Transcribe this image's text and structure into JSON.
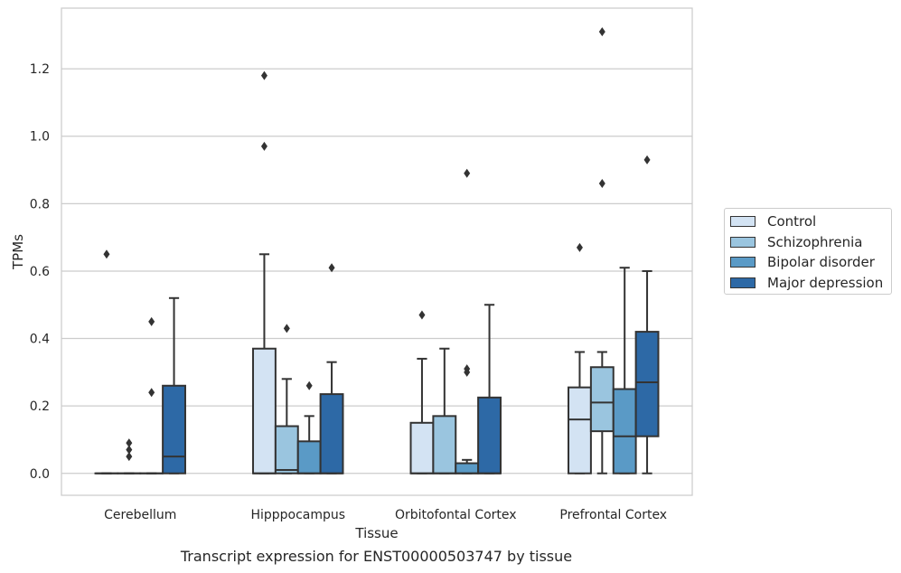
{
  "chart_data": {
    "type": "box",
    "xlabel": "Tissue",
    "ylabel": "TPMs",
    "caption": "Transcript expression for ENST00000503747 by tissue",
    "categories": [
      "Cerebellum",
      "Hipppocampus",
      "Orbitofontal Cortex",
      "Prefrontal Cortex"
    ],
    "ylim": [
      -0.065,
      1.38
    ],
    "yticks": [
      0.0,
      0.2,
      0.4,
      0.6,
      0.8,
      1.0,
      1.2
    ],
    "ytick_labels": [
      "0.0",
      "0.2",
      "0.4",
      "0.6",
      "0.8",
      "1.0",
      "1.2"
    ],
    "grid": "horizontal",
    "legend_position": "right",
    "series": [
      {
        "name": "Control",
        "color": "#d3e3f3",
        "boxes": [
          {
            "q1": 0.0,
            "median": 0.0,
            "q3": 0.0,
            "whisker_low": 0.0,
            "whisker_high": 0.0,
            "outliers": [
              0.65
            ]
          },
          {
            "q1": 0.0,
            "median": 0.0,
            "q3": 0.37,
            "whisker_low": 0.0,
            "whisker_high": 0.65,
            "outliers": [
              0.97,
              1.18
            ]
          },
          {
            "q1": 0.0,
            "median": 0.0,
            "q3": 0.15,
            "whisker_low": 0.0,
            "whisker_high": 0.34,
            "outliers": [
              0.47
            ]
          },
          {
            "q1": 0.0,
            "median": 0.16,
            "q3": 0.255,
            "whisker_low": 0.0,
            "whisker_high": 0.36,
            "outliers": [
              0.67
            ]
          }
        ]
      },
      {
        "name": "Schizophrenia",
        "color": "#9ac5df",
        "boxes": [
          {
            "q1": 0.0,
            "median": 0.0,
            "q3": 0.0,
            "whisker_low": 0.0,
            "whisker_high": 0.0,
            "outliers": [
              0.05,
              0.07,
              0.09
            ]
          },
          {
            "q1": 0.0,
            "median": 0.01,
            "q3": 0.14,
            "whisker_low": 0.0,
            "whisker_high": 0.28,
            "outliers": [
              0.43
            ]
          },
          {
            "q1": 0.0,
            "median": 0.0,
            "q3": 0.17,
            "whisker_low": 0.0,
            "whisker_high": 0.37,
            "outliers": []
          },
          {
            "q1": 0.125,
            "median": 0.21,
            "q3": 0.315,
            "whisker_low": 0.0,
            "whisker_high": 0.36,
            "outliers": [
              0.86,
              1.31
            ]
          }
        ]
      },
      {
        "name": "Bipolar disorder",
        "color": "#5a9ac6",
        "boxes": [
          {
            "q1": 0.0,
            "median": 0.0,
            "q3": 0.0,
            "whisker_low": 0.0,
            "whisker_high": 0.0,
            "outliers": [
              0.24,
              0.45
            ]
          },
          {
            "q1": 0.0,
            "median": 0.0,
            "q3": 0.095,
            "whisker_low": 0.0,
            "whisker_high": 0.17,
            "outliers": [
              0.26
            ]
          },
          {
            "q1": 0.0,
            "median": 0.0,
            "q3": 0.03,
            "whisker_low": 0.0,
            "whisker_high": 0.04,
            "outliers": [
              0.3,
              0.31,
              0.89
            ]
          },
          {
            "q1": 0.0,
            "median": 0.11,
            "q3": 0.25,
            "whisker_low": 0.0,
            "whisker_high": 0.61,
            "outliers": []
          }
        ]
      },
      {
        "name": "Major depression",
        "color": "#2d69a6",
        "boxes": [
          {
            "q1": 0.0,
            "median": 0.05,
            "q3": 0.26,
            "whisker_low": 0.0,
            "whisker_high": 0.52,
            "outliers": []
          },
          {
            "q1": 0.0,
            "median": 0.0,
            "q3": 0.235,
            "whisker_low": 0.0,
            "whisker_high": 0.33,
            "outliers": [
              0.61
            ]
          },
          {
            "q1": 0.0,
            "median": 0.0,
            "q3": 0.225,
            "whisker_low": 0.0,
            "whisker_high": 0.5,
            "outliers": []
          },
          {
            "q1": 0.11,
            "median": 0.27,
            "q3": 0.42,
            "whisker_low": 0.0,
            "whisker_high": 0.6,
            "outliers": [
              0.93
            ]
          }
        ]
      }
    ]
  }
}
